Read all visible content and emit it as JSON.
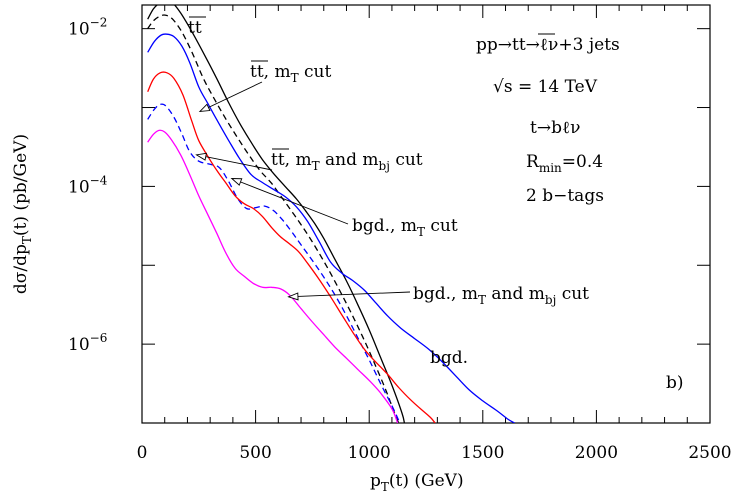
{
  "chart_data": {
    "type": "line",
    "xlabel": "p_T(t) (GeV)",
    "ylabel": "dσ/dp_T(t) (pb/GeV)",
    "xlim": [
      0,
      2500
    ],
    "ylim_log10": [
      -7,
      -1.7
    ],
    "log_y": true,
    "grid": false,
    "x_ticks": [
      "0",
      "500",
      "1000",
      "1500",
      "2000",
      "2500"
    ],
    "y_ticks": [
      {
        "base": "10",
        "exp": "−2",
        "log10": -2
      },
      {
        "base": "10",
        "exp": "−4",
        "log10": -4
      },
      {
        "base": "10",
        "exp": "−6",
        "log10": -6
      }
    ],
    "panel_label": "b)",
    "info_lines": [
      "pp→tt̄→ℓν+3 jets",
      "√s = 14 TeV",
      "t→bℓν",
      "R_min=0.4",
      "2 b−tags"
    ],
    "annotations": [
      {
        "label": "tt̄",
        "target": [
          105,
          -1.68
        ]
      },
      {
        "label": "tt̄, m_T cut",
        "target": [
          255,
          -3.05
        ]
      },
      {
        "label": "tt̄, m_T and m_bj cut",
        "target": [
          240,
          -3.6
        ]
      },
      {
        "label": "bgd., m_T cut",
        "target": [
          395,
          -3.9
        ]
      },
      {
        "label": "bgd., m_T and m_bj cut",
        "target": [
          645,
          -5.4
        ]
      },
      {
        "label": "bgd.",
        "target": [
          1650,
          -7.0
        ]
      }
    ],
    "series": [
      {
        "name": "tt̄",
        "color": "#000000",
        "dash": false,
        "points": [
          [
            25,
            -1.88
          ],
          [
            50,
            -1.75
          ],
          [
            75,
            -1.68
          ],
          [
            105,
            -1.64
          ],
          [
            130,
            -1.66
          ],
          [
            170,
            -1.8
          ],
          [
            220,
            -2.04
          ],
          [
            280,
            -2.36
          ],
          [
            330,
            -2.64
          ],
          [
            380,
            -2.93
          ],
          [
            430,
            -3.2
          ],
          [
            480,
            -3.44
          ],
          [
            530,
            -3.66
          ],
          [
            580,
            -3.84
          ],
          [
            630,
            -4.0
          ],
          [
            680,
            -4.16
          ],
          [
            720,
            -4.31
          ],
          [
            760,
            -4.47
          ],
          [
            800,
            -4.66
          ],
          [
            850,
            -4.93
          ],
          [
            900,
            -5.2
          ],
          [
            950,
            -5.5
          ],
          [
            1000,
            -5.82
          ],
          [
            1050,
            -6.17
          ],
          [
            1100,
            -6.52
          ],
          [
            1145,
            -6.88
          ],
          [
            1155,
            -7.0
          ]
        ]
      },
      {
        "name": "tt̄, m_T cut",
        "color": "#000000",
        "dash": true,
        "points": [
          [
            25,
            -2.0
          ],
          [
            50,
            -1.9
          ],
          [
            80,
            -1.84
          ],
          [
            105,
            -1.83
          ],
          [
            135,
            -1.88
          ],
          [
            175,
            -2.04
          ],
          [
            220,
            -2.3
          ],
          [
            270,
            -2.63
          ],
          [
            320,
            -2.9
          ],
          [
            370,
            -3.15
          ],
          [
            420,
            -3.38
          ],
          [
            470,
            -3.6
          ],
          [
            520,
            -3.8
          ],
          [
            570,
            -3.96
          ],
          [
            620,
            -4.16
          ],
          [
            670,
            -4.36
          ],
          [
            720,
            -4.57
          ],
          [
            770,
            -4.8
          ],
          [
            820,
            -5.05
          ],
          [
            870,
            -5.32
          ],
          [
            920,
            -5.6
          ],
          [
            970,
            -5.9
          ],
          [
            1020,
            -6.22
          ],
          [
            1070,
            -6.56
          ],
          [
            1115,
            -6.9
          ],
          [
            1130,
            -7.0
          ]
        ]
      },
      {
        "name": "bgd.",
        "color": "#0000ff",
        "dash": false,
        "points": [
          [
            25,
            -2.3
          ],
          [
            55,
            -2.16
          ],
          [
            85,
            -2.08
          ],
          [
            110,
            -2.07
          ],
          [
            140,
            -2.1
          ],
          [
            175,
            -2.22
          ],
          [
            210,
            -2.43
          ],
          [
            250,
            -2.74
          ],
          [
            290,
            -2.95
          ],
          [
            330,
            -3.16
          ],
          [
            380,
            -3.41
          ],
          [
            430,
            -3.65
          ],
          [
            480,
            -3.85
          ],
          [
            530,
            -3.95
          ],
          [
            580,
            -4.04
          ],
          [
            630,
            -4.13
          ],
          [
            680,
            -4.26
          ],
          [
            730,
            -4.45
          ],
          [
            780,
            -4.7
          ],
          [
            830,
            -4.96
          ],
          [
            880,
            -5.1
          ],
          [
            930,
            -5.2
          ],
          [
            980,
            -5.32
          ],
          [
            1030,
            -5.48
          ],
          [
            1080,
            -5.64
          ],
          [
            1140,
            -5.8
          ],
          [
            1200,
            -5.93
          ],
          [
            1260,
            -6.06
          ],
          [
            1320,
            -6.22
          ],
          [
            1380,
            -6.4
          ],
          [
            1440,
            -6.58
          ],
          [
            1500,
            -6.72
          ],
          [
            1560,
            -6.84
          ],
          [
            1610,
            -6.95
          ],
          [
            1640,
            -7.0
          ]
        ]
      },
      {
        "name": "bgd., m_T cut",
        "color": "#0000ff",
        "dash": true,
        "points": [
          [
            25,
            -3.15
          ],
          [
            55,
            -3.02
          ],
          [
            80,
            -2.96
          ],
          [
            105,
            -2.98
          ],
          [
            140,
            -3.12
          ],
          [
            175,
            -3.33
          ],
          [
            210,
            -3.56
          ],
          [
            250,
            -3.68
          ],
          [
            300,
            -3.72
          ],
          [
            340,
            -3.76
          ],
          [
            380,
            -3.93
          ],
          [
            420,
            -4.15
          ],
          [
            460,
            -4.28
          ],
          [
            500,
            -4.27
          ],
          [
            540,
            -4.25
          ],
          [
            580,
            -4.31
          ],
          [
            620,
            -4.43
          ],
          [
            660,
            -4.58
          ],
          [
            700,
            -4.74
          ],
          [
            750,
            -4.94
          ],
          [
            800,
            -5.15
          ],
          [
            850,
            -5.38
          ],
          [
            900,
            -5.64
          ],
          [
            950,
            -5.92
          ],
          [
            1000,
            -6.2
          ],
          [
            1050,
            -6.5
          ],
          [
            1100,
            -6.78
          ],
          [
            1135,
            -7.0
          ]
        ]
      },
      {
        "name": "tt̄, m_T and m_bj cut",
        "color": "#ff0000",
        "dash": false,
        "points": [
          [
            25,
            -2.8
          ],
          [
            50,
            -2.64
          ],
          [
            80,
            -2.56
          ],
          [
            110,
            -2.56
          ],
          [
            140,
            -2.63
          ],
          [
            180,
            -2.84
          ],
          [
            220,
            -3.18
          ],
          [
            250,
            -3.42
          ],
          [
            290,
            -3.62
          ],
          [
            330,
            -3.8
          ],
          [
            370,
            -3.96
          ],
          [
            410,
            -4.12
          ],
          [
            450,
            -4.22
          ],
          [
            490,
            -4.28
          ],
          [
            530,
            -4.38
          ],
          [
            570,
            -4.52
          ],
          [
            610,
            -4.64
          ],
          [
            650,
            -4.73
          ],
          [
            690,
            -4.83
          ],
          [
            730,
            -4.98
          ],
          [
            780,
            -5.18
          ],
          [
            830,
            -5.4
          ],
          [
            880,
            -5.63
          ],
          [
            930,
            -5.86
          ],
          [
            980,
            -6.07
          ],
          [
            1030,
            -6.23
          ],
          [
            1080,
            -6.38
          ],
          [
            1130,
            -6.55
          ],
          [
            1180,
            -6.7
          ],
          [
            1230,
            -6.83
          ],
          [
            1270,
            -6.93
          ],
          [
            1290,
            -7.0
          ]
        ]
      },
      {
        "name": "bgd., m_T and m_bj cut",
        "color": "#ff00ff",
        "dash": false,
        "points": [
          [
            25,
            -3.44
          ],
          [
            50,
            -3.34
          ],
          [
            75,
            -3.29
          ],
          [
            100,
            -3.31
          ],
          [
            130,
            -3.41
          ],
          [
            170,
            -3.6
          ],
          [
            210,
            -3.85
          ],
          [
            250,
            -4.12
          ],
          [
            290,
            -4.36
          ],
          [
            330,
            -4.6
          ],
          [
            370,
            -4.85
          ],
          [
            410,
            -5.04
          ],
          [
            450,
            -5.14
          ],
          [
            490,
            -5.23
          ],
          [
            530,
            -5.28
          ],
          [
            570,
            -5.28
          ],
          [
            610,
            -5.3
          ],
          [
            650,
            -5.38
          ],
          [
            700,
            -5.55
          ],
          [
            750,
            -5.72
          ],
          [
            800,
            -5.88
          ],
          [
            850,
            -6.04
          ],
          [
            900,
            -6.18
          ],
          [
            950,
            -6.32
          ],
          [
            1000,
            -6.46
          ],
          [
            1050,
            -6.62
          ],
          [
            1100,
            -6.82
          ],
          [
            1125,
            -7.0
          ]
        ]
      }
    ]
  }
}
